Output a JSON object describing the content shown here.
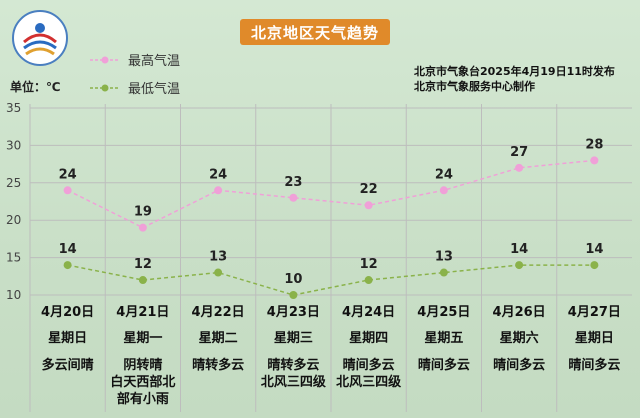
{
  "title": "北京地区天气趋势",
  "publisher_lines": [
    "北京市气象台2025年4月19日11时发布",
    "北京市气象服务中心制作"
  ],
  "unit_label": "单位：℃",
  "colors": {
    "high_line": "#f0a0d8",
    "low_line": "#8ab24a",
    "title_bg": "#e08a2a"
  },
  "chart_data": {
    "type": "line",
    "ylim": [
      10,
      35
    ],
    "yticks": [
      10,
      15,
      20,
      25,
      30,
      35
    ],
    "grid": true,
    "legend_position": "top-left",
    "categories": [
      "4月20日",
      "4月21日",
      "4月22日",
      "4月23日",
      "4月24日",
      "4月25日",
      "4月26日",
      "4月27日"
    ],
    "series": [
      {
        "name": "最高气温",
        "values": [
          24,
          19,
          24,
          23,
          22,
          24,
          27,
          28
        ]
      },
      {
        "name": "最低气温",
        "values": [
          14,
          12,
          13,
          10,
          12,
          13,
          14,
          14
        ]
      }
    ]
  },
  "days": [
    {
      "date": "4月20日",
      "weekday": "星期日",
      "weather": [
        "多云间晴"
      ]
    },
    {
      "date": "4月21日",
      "weekday": "星期一",
      "weather": [
        "阴转晴",
        "白天西部北",
        "部有小雨"
      ]
    },
    {
      "date": "4月22日",
      "weekday": "星期二",
      "weather": [
        "晴转多云"
      ]
    },
    {
      "date": "4月23日",
      "weekday": "星期三",
      "weather": [
        "晴转多云",
        "北风三四级"
      ]
    },
    {
      "date": "4月24日",
      "weekday": "星期四",
      "weather": [
        "晴间多云",
        "北风三四级"
      ]
    },
    {
      "date": "4月25日",
      "weekday": "星期五",
      "weather": [
        "晴间多云"
      ]
    },
    {
      "date": "4月26日",
      "weekday": "星期六",
      "weather": [
        "晴间多云"
      ]
    },
    {
      "date": "4月27日",
      "weekday": "星期日",
      "weather": [
        "晴间多云"
      ]
    }
  ]
}
